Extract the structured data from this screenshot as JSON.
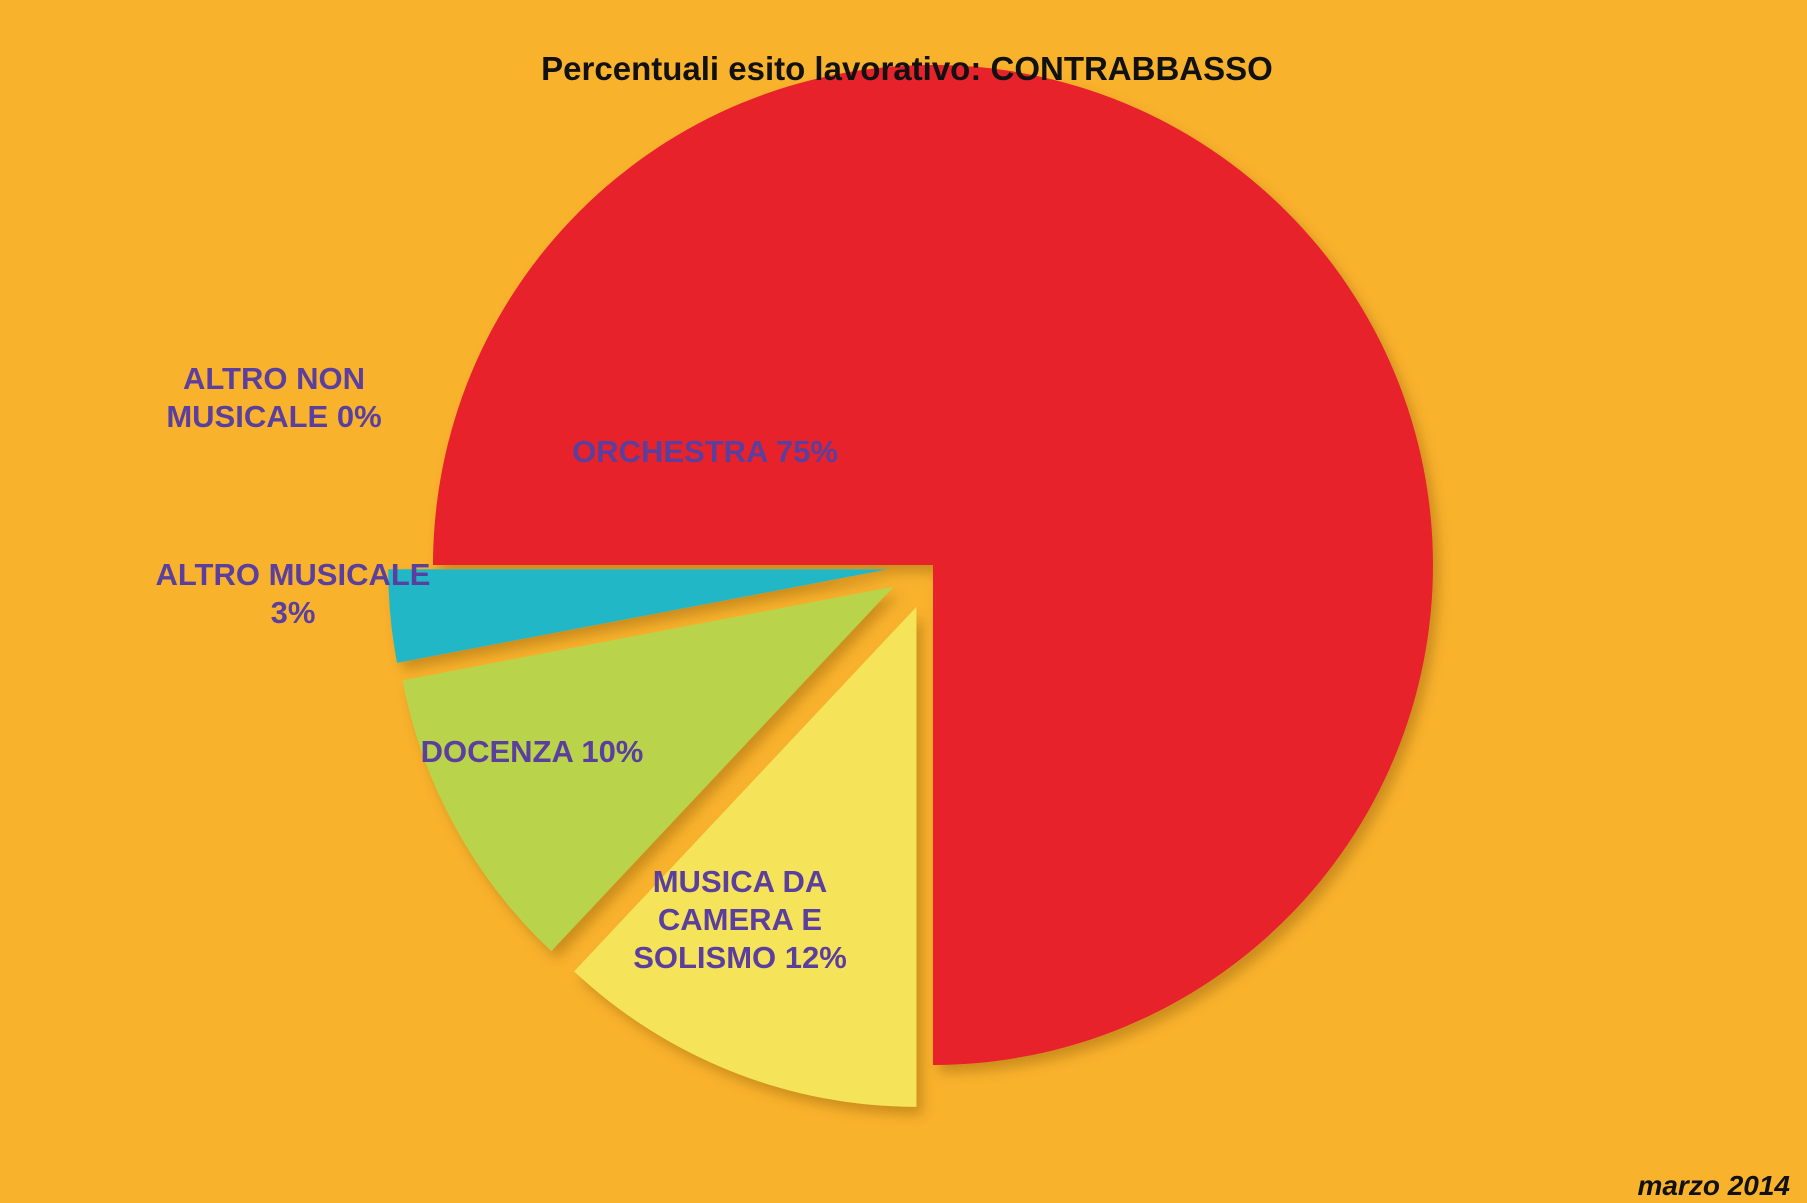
{
  "chart_data": {
    "type": "pie",
    "title": "Percentuali esito lavorativo: CONTRABBASSO",
    "footnote": "marzo 2014",
    "categories": [
      "ORCHESTRA 75%",
      "MUSICA DA\nCAMERA E\nSOLISMO 12%",
      "DOCENZA 10%",
      "ALTRO MUSICALE\n3%",
      "ALTRO NON\nMUSICALE 0%"
    ],
    "values": [
      75,
      12,
      10,
      3,
      0
    ],
    "colors": [
      "#e8202a",
      "#f5e35a",
      "#b9d44c",
      "#22b7c6",
      "#9b59b6"
    ]
  }
}
